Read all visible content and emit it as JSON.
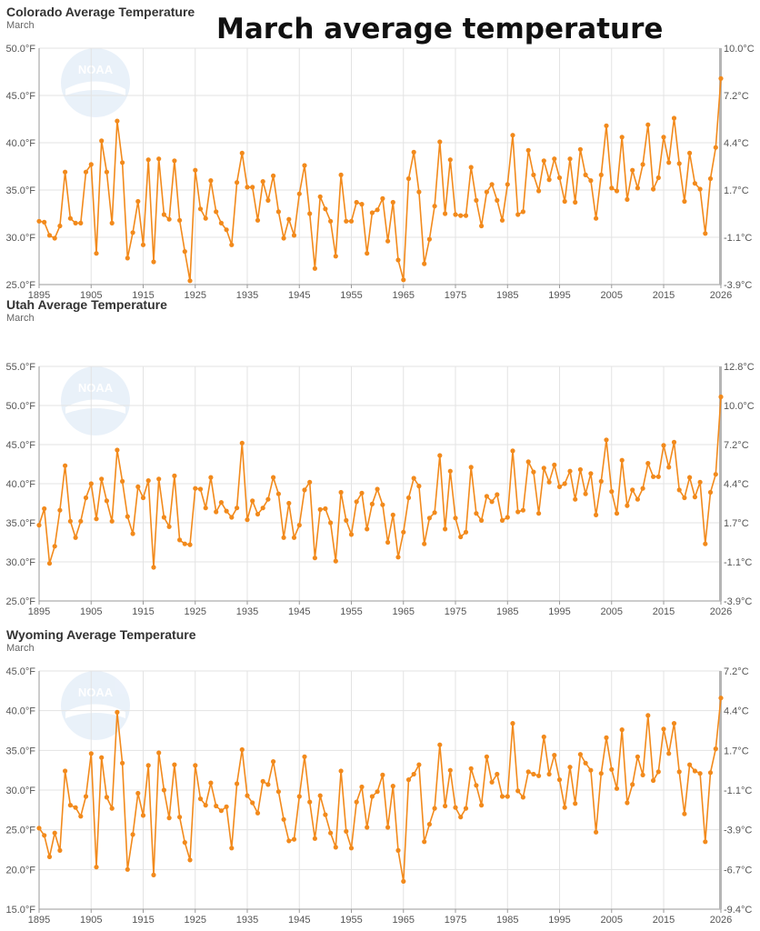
{
  "header": {
    "title": "March average temperature"
  },
  "colors": {
    "series": "#f28a1c",
    "grid": "#e3e3e3",
    "logo": "#d8e6f5"
  },
  "icons": {
    "logo": "noaa-logo-watermark"
  },
  "logo_text": "NOAA",
  "chart_data": [
    {
      "type": "line",
      "title": "Colorado Average Temperature",
      "subtitle": "March",
      "x_ticks": [
        "1895",
        "1905",
        "1915",
        "1925",
        "1935",
        "1945",
        "1955",
        "1965",
        "1975",
        "1985",
        "1995",
        "2005",
        "2015",
        "2026"
      ],
      "y_ticks_left": [
        "25.0°F",
        "30.0°F",
        "35.0°F",
        "40.0°F",
        "45.0°F",
        "50.0°F"
      ],
      "y_ticks_right": [
        "-3.9°C",
        "-1.1°C",
        "1.7°C",
        "4.4°C",
        "7.2°C",
        "10.0°C"
      ],
      "xlim": [
        1895,
        2026
      ],
      "ylim": [
        25,
        50
      ],
      "grid": true,
      "values": [
        31.7,
        31.6,
        30.2,
        29.9,
        31.2,
        36.9,
        32.0,
        31.5,
        31.5,
        36.9,
        37.7,
        28.3,
        40.2,
        36.9,
        31.5,
        42.3,
        37.9,
        27.8,
        30.5,
        33.8,
        29.2,
        38.2,
        27.4,
        38.3,
        32.4,
        31.9,
        38.1,
        31.8,
        28.5,
        25.4,
        37.1,
        33.0,
        32.0,
        36.0,
        32.7,
        31.5,
        30.8,
        29.2,
        35.8,
        38.9,
        35.3,
        35.3,
        31.8,
        35.9,
        33.9,
        36.5,
        32.7,
        29.9,
        31.9,
        30.2,
        34.6,
        37.6,
        32.5,
        26.7,
        34.3,
        33.0,
        31.7,
        28.0,
        36.6,
        31.7,
        31.7,
        33.7,
        33.5,
        28.3,
        32.6,
        32.9,
        34.1,
        29.6,
        33.7,
        27.6,
        25.5,
        36.2,
        39.0,
        34.8,
        27.2,
        29.8,
        33.3,
        40.1,
        32.5,
        38.2,
        32.4,
        32.3,
        32.3,
        37.4,
        33.9,
        31.2,
        34.8,
        35.6,
        33.9,
        31.8,
        35.6,
        40.8,
        32.4,
        32.7,
        39.2,
        36.6,
        34.9,
        38.1,
        36.1,
        38.3,
        36.3,
        33.8,
        38.3,
        33.7,
        39.3,
        36.6,
        36.0,
        32.0,
        36.6,
        41.8,
        35.2,
        34.9,
        40.6,
        34.0,
        37.1,
        35.2,
        37.7,
        41.9,
        35.1,
        36.3,
        40.6,
        37.9,
        42.6,
        37.8,
        33.8,
        38.9,
        35.7,
        35.1,
        30.4,
        36.2,
        39.5,
        46.8
      ]
    },
    {
      "type": "line",
      "title": "Utah Average Temperature",
      "subtitle": "March",
      "x_ticks": [
        "1895",
        "1905",
        "1915",
        "1925",
        "1935",
        "1945",
        "1955",
        "1965",
        "1975",
        "1985",
        "1995",
        "2005",
        "2015",
        "2026"
      ],
      "y_ticks_left": [
        "25.0°F",
        "30.0°F",
        "35.0°F",
        "40.0°F",
        "45.0°F",
        "50.0°F",
        "55.0°F"
      ],
      "y_ticks_right": [
        "-3.9°C",
        "-1.1°C",
        "1.7°C",
        "4.4°C",
        "7.2°C",
        "10.0°C",
        "12.8°C"
      ],
      "xlim": [
        1895,
        2026
      ],
      "ylim": [
        25,
        55
      ],
      "grid": true,
      "values": [
        34.7,
        36.8,
        29.8,
        32.0,
        36.6,
        42.3,
        35.2,
        33.1,
        35.2,
        38.2,
        40.0,
        35.5,
        40.6,
        37.8,
        35.2,
        44.3,
        40.3,
        35.8,
        33.6,
        39.6,
        38.2,
        40.4,
        29.3,
        40.6,
        35.7,
        34.5,
        41.0,
        32.8,
        32.3,
        32.2,
        39.4,
        39.3,
        36.9,
        40.8,
        36.4,
        37.6,
        36.5,
        35.7,
        36.9,
        45.2,
        35.4,
        37.8,
        36.1,
        36.9,
        38.0,
        40.8,
        38.7,
        33.1,
        37.5,
        33.1,
        34.7,
        39.2,
        40.2,
        30.5,
        36.7,
        36.8,
        35.0,
        30.1,
        38.9,
        35.3,
        33.5,
        37.7,
        38.8,
        34.2,
        37.4,
        39.3,
        37.3,
        32.5,
        36.0,
        30.6,
        33.8,
        38.2,
        40.7,
        39.7,
        32.3,
        35.6,
        36.3,
        43.6,
        34.2,
        41.6,
        35.6,
        33.2,
        33.8,
        42.1,
        36.2,
        35.3,
        38.4,
        37.7,
        38.6,
        35.3,
        35.7,
        44.2,
        36.4,
        36.6,
        42.8,
        41.5,
        36.2,
        42.0,
        40.2,
        42.4,
        39.6,
        40.0,
        41.6,
        38.0,
        41.8,
        38.7,
        41.3,
        36.0,
        40.3,
        45.6,
        39.0,
        36.2,
        43.0,
        37.2,
        39.2,
        38.0,
        39.4,
        42.6,
        40.9,
        40.9,
        44.9,
        42.1,
        45.3,
        39.2,
        38.2,
        40.8,
        38.3,
        40.2,
        32.3,
        38.9,
        41.2,
        51.1
      ]
    },
    {
      "type": "line",
      "title": "Wyoming Average Temperature",
      "subtitle": "March",
      "x_ticks": [
        "1895",
        "1905",
        "1915",
        "1925",
        "1935",
        "1945",
        "1955",
        "1965",
        "1975",
        "1985",
        "1995",
        "2005",
        "2015",
        "2026"
      ],
      "y_ticks_left": [
        "15.0°F",
        "20.0°F",
        "25.0°F",
        "30.0°F",
        "35.0°F",
        "40.0°F",
        "45.0°F"
      ],
      "y_ticks_right": [
        "-9.4°C",
        "-6.7°C",
        "-3.9°C",
        "-1.1°C",
        "1.7°C",
        "4.4°C",
        "7.2°C"
      ],
      "xlim": [
        1895,
        2026
      ],
      "ylim": [
        15,
        45
      ],
      "grid": true,
      "values": [
        25.2,
        24.3,
        21.6,
        24.6,
        22.4,
        32.4,
        28.1,
        27.8,
        26.7,
        29.2,
        34.6,
        20.3,
        34.1,
        29.1,
        27.7,
        39.8,
        33.4,
        20.0,
        24.4,
        29.6,
        26.8,
        33.1,
        19.3,
        34.7,
        30.0,
        26.5,
        33.2,
        26.6,
        23.4,
        21.2,
        33.1,
        28.9,
        28.1,
        30.9,
        28.0,
        27.4,
        27.9,
        22.7,
        30.8,
        35.1,
        29.3,
        28.4,
        27.1,
        31.1,
        30.7,
        33.6,
        29.8,
        26.3,
        23.6,
        23.8,
        29.2,
        34.2,
        28.5,
        23.9,
        29.3,
        26.9,
        24.6,
        22.8,
        32.4,
        24.8,
        22.7,
        28.5,
        30.4,
        25.3,
        29.2,
        29.8,
        31.9,
        25.3,
        30.5,
        22.4,
        18.5,
        31.3,
        32.0,
        33.2,
        23.5,
        25.7,
        27.7,
        35.7,
        28.0,
        32.5,
        27.8,
        26.6,
        27.7,
        32.7,
        30.6,
        28.1,
        34.2,
        31.0,
        32.0,
        29.2,
        29.2,
        38.4,
        29.9,
        29.1,
        32.3,
        32.0,
        31.8,
        36.7,
        32.0,
        34.4,
        31.3,
        27.8,
        32.9,
        28.3,
        34.5,
        33.4,
        32.5,
        24.7,
        32.1,
        36.6,
        32.6,
        30.2,
        37.6,
        28.4,
        30.7,
        34.2,
        31.9,
        39.4,
        31.2,
        32.3,
        37.7,
        34.6,
        38.4,
        32.3,
        27.0,
        33.2,
        32.4,
        32.1,
        23.5,
        32.2,
        35.2,
        41.6
      ]
    }
  ]
}
